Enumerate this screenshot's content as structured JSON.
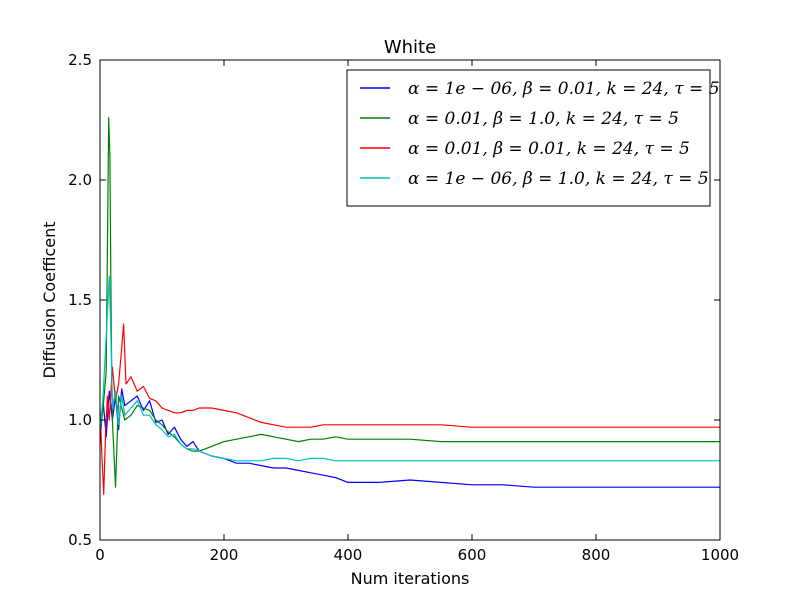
{
  "chart_data": {
    "type": "line",
    "title": "White",
    "xlabel": "Num iterations",
    "ylabel": "Diffusion Coefficent",
    "xlim": [
      0,
      1000
    ],
    "ylim": [
      0.5,
      2.5
    ],
    "xticks": [
      0,
      200,
      400,
      600,
      800,
      1000
    ],
    "yticks": [
      0.5,
      1.0,
      1.5,
      2.0,
      2.5
    ],
    "xtick_labels": [
      "0",
      "200",
      "400",
      "600",
      "800",
      "1000"
    ],
    "ytick_labels": [
      "0.5",
      "1.0",
      "1.5",
      "2.0",
      "2.5"
    ],
    "grid": false,
    "legend_position": "top-right",
    "series": [
      {
        "name": "α = 1e − 06, β = 0.01, k = 24, τ = 5",
        "color": "#0000ff",
        "x": [
          0,
          5,
          10,
          15,
          20,
          25,
          30,
          35,
          40,
          50,
          60,
          70,
          80,
          90,
          100,
          110,
          120,
          130,
          140,
          150,
          160,
          180,
          200,
          220,
          240,
          260,
          280,
          300,
          320,
          340,
          360,
          380,
          400,
          450,
          500,
          550,
          600,
          650,
          700,
          750,
          800,
          850,
          900,
          950,
          1000
        ],
        "y": [
          0.9,
          1.08,
          0.93,
          1.12,
          1.0,
          1.1,
          0.96,
          1.13,
          1.06,
          1.08,
          1.1,
          1.04,
          1.08,
          0.99,
          1.0,
          0.94,
          0.97,
          0.92,
          0.89,
          0.91,
          0.87,
          0.85,
          0.84,
          0.82,
          0.82,
          0.81,
          0.8,
          0.8,
          0.79,
          0.78,
          0.77,
          0.76,
          0.74,
          0.74,
          0.75,
          0.74,
          0.73,
          0.73,
          0.72,
          0.72,
          0.72,
          0.72,
          0.72,
          0.72,
          0.72
        ]
      },
      {
        "name": "α = 0.01, β = 1.0, k = 24, τ = 5",
        "color": "#008000",
        "x": [
          0,
          5,
          10,
          14,
          16,
          18,
          20,
          25,
          30,
          35,
          40,
          50,
          60,
          70,
          80,
          90,
          100,
          110,
          120,
          130,
          140,
          150,
          160,
          180,
          200,
          220,
          240,
          260,
          280,
          300,
          320,
          340,
          360,
          380,
          400,
          450,
          500,
          550,
          600,
          650,
          700,
          750,
          800,
          850,
          900,
          950,
          1000
        ],
        "y": [
          0.95,
          1.05,
          1.2,
          2.26,
          2.1,
          1.4,
          1.0,
          0.72,
          1.1,
          1.05,
          1.0,
          1.02,
          1.06,
          1.05,
          1.04,
          1.0,
          0.98,
          0.95,
          0.93,
          0.9,
          0.88,
          0.87,
          0.87,
          0.89,
          0.91,
          0.92,
          0.93,
          0.94,
          0.93,
          0.92,
          0.91,
          0.92,
          0.92,
          0.93,
          0.92,
          0.92,
          0.92,
          0.91,
          0.91,
          0.91,
          0.91,
          0.91,
          0.91,
          0.91,
          0.91,
          0.91,
          0.91
        ]
      },
      {
        "name": "α = 0.01, β = 0.01, k = 24, τ = 5",
        "color": "#ff0000",
        "x": [
          0,
          3,
          6,
          9,
          12,
          15,
          20,
          25,
          30,
          35,
          38,
          42,
          50,
          60,
          70,
          80,
          90,
          100,
          110,
          120,
          130,
          140,
          150,
          160,
          180,
          200,
          220,
          240,
          260,
          280,
          300,
          320,
          340,
          360,
          380,
          400,
          450,
          500,
          550,
          600,
          650,
          700,
          750,
          800,
          850,
          900,
          950,
          1000
        ],
        "y": [
          1.05,
          0.85,
          0.69,
          0.95,
          1.1,
          1.0,
          1.22,
          1.08,
          1.15,
          1.3,
          1.4,
          1.15,
          1.18,
          1.12,
          1.14,
          1.09,
          1.08,
          1.05,
          1.04,
          1.03,
          1.03,
          1.04,
          1.04,
          1.05,
          1.05,
          1.04,
          1.03,
          1.01,
          0.99,
          0.98,
          0.97,
          0.97,
          0.97,
          0.98,
          0.98,
          0.98,
          0.98,
          0.98,
          0.98,
          0.97,
          0.97,
          0.97,
          0.97,
          0.97,
          0.97,
          0.97,
          0.97,
          0.97
        ]
      },
      {
        "name": "α = 1e − 06, β = 1.0, k = 24, τ = 5",
        "color": "#00bfbf",
        "x": [
          0,
          5,
          10,
          15,
          18,
          20,
          25,
          30,
          35,
          40,
          50,
          60,
          70,
          80,
          90,
          100,
          110,
          120,
          130,
          140,
          150,
          160,
          180,
          200,
          220,
          240,
          260,
          280,
          300,
          320,
          340,
          360,
          380,
          400,
          450,
          500,
          550,
          600,
          650,
          700,
          750,
          800,
          850,
          900,
          950,
          1000
        ],
        "y": [
          0.95,
          1.1,
          1.35,
          1.6,
          1.3,
          1.05,
          1.12,
          0.98,
          1.1,
          1.02,
          1.05,
          1.08,
          1.02,
          1.02,
          0.98,
          0.96,
          0.93,
          0.94,
          0.9,
          0.88,
          0.88,
          0.87,
          0.85,
          0.84,
          0.83,
          0.83,
          0.83,
          0.84,
          0.84,
          0.83,
          0.84,
          0.84,
          0.83,
          0.83,
          0.83,
          0.83,
          0.83,
          0.83,
          0.83,
          0.83,
          0.83,
          0.83,
          0.83,
          0.83,
          0.83,
          0.83
        ]
      }
    ]
  }
}
